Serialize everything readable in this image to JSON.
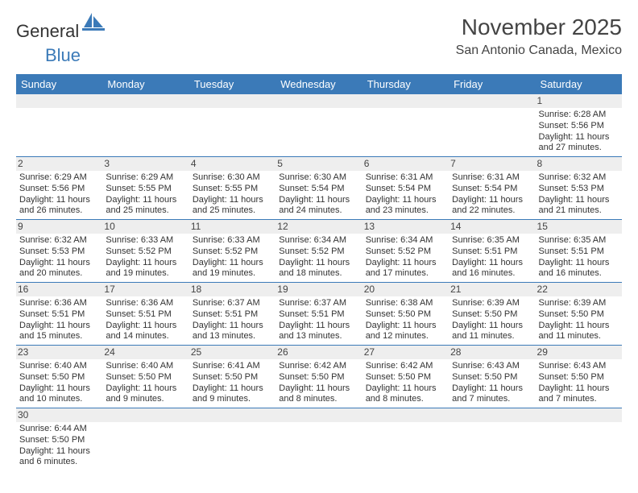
{
  "brand": {
    "part1": "General",
    "part2": "Blue"
  },
  "header": {
    "title": "November 2025",
    "location": "San Antonio Canada, Mexico"
  },
  "colors": {
    "accent": "#3b7ab8",
    "shade": "#eeeeee",
    "text": "#333333"
  },
  "daysOfWeek": [
    "Sunday",
    "Monday",
    "Tuesday",
    "Wednesday",
    "Thursday",
    "Friday",
    "Saturday"
  ],
  "grid": {
    "startOffset": 6,
    "cells": [
      {
        "n": 1,
        "sr": "6:28 AM",
        "ss": "5:56 PM",
        "dl": "11 hours and 27 minutes."
      },
      {
        "n": 2,
        "sr": "6:29 AM",
        "ss": "5:56 PM",
        "dl": "11 hours and 26 minutes."
      },
      {
        "n": 3,
        "sr": "6:29 AM",
        "ss": "5:55 PM",
        "dl": "11 hours and 25 minutes."
      },
      {
        "n": 4,
        "sr": "6:30 AM",
        "ss": "5:55 PM",
        "dl": "11 hours and 25 minutes."
      },
      {
        "n": 5,
        "sr": "6:30 AM",
        "ss": "5:54 PM",
        "dl": "11 hours and 24 minutes."
      },
      {
        "n": 6,
        "sr": "6:31 AM",
        "ss": "5:54 PM",
        "dl": "11 hours and 23 minutes."
      },
      {
        "n": 7,
        "sr": "6:31 AM",
        "ss": "5:54 PM",
        "dl": "11 hours and 22 minutes."
      },
      {
        "n": 8,
        "sr": "6:32 AM",
        "ss": "5:53 PM",
        "dl": "11 hours and 21 minutes."
      },
      {
        "n": 9,
        "sr": "6:32 AM",
        "ss": "5:53 PM",
        "dl": "11 hours and 20 minutes."
      },
      {
        "n": 10,
        "sr": "6:33 AM",
        "ss": "5:52 PM",
        "dl": "11 hours and 19 minutes."
      },
      {
        "n": 11,
        "sr": "6:33 AM",
        "ss": "5:52 PM",
        "dl": "11 hours and 19 minutes."
      },
      {
        "n": 12,
        "sr": "6:34 AM",
        "ss": "5:52 PM",
        "dl": "11 hours and 18 minutes."
      },
      {
        "n": 13,
        "sr": "6:34 AM",
        "ss": "5:52 PM",
        "dl": "11 hours and 17 minutes."
      },
      {
        "n": 14,
        "sr": "6:35 AM",
        "ss": "5:51 PM",
        "dl": "11 hours and 16 minutes."
      },
      {
        "n": 15,
        "sr": "6:35 AM",
        "ss": "5:51 PM",
        "dl": "11 hours and 16 minutes."
      },
      {
        "n": 16,
        "sr": "6:36 AM",
        "ss": "5:51 PM",
        "dl": "11 hours and 15 minutes."
      },
      {
        "n": 17,
        "sr": "6:36 AM",
        "ss": "5:51 PM",
        "dl": "11 hours and 14 minutes."
      },
      {
        "n": 18,
        "sr": "6:37 AM",
        "ss": "5:51 PM",
        "dl": "11 hours and 13 minutes."
      },
      {
        "n": 19,
        "sr": "6:37 AM",
        "ss": "5:51 PM",
        "dl": "11 hours and 13 minutes."
      },
      {
        "n": 20,
        "sr": "6:38 AM",
        "ss": "5:50 PM",
        "dl": "11 hours and 12 minutes."
      },
      {
        "n": 21,
        "sr": "6:39 AM",
        "ss": "5:50 PM",
        "dl": "11 hours and 11 minutes."
      },
      {
        "n": 22,
        "sr": "6:39 AM",
        "ss": "5:50 PM",
        "dl": "11 hours and 11 minutes."
      },
      {
        "n": 23,
        "sr": "6:40 AM",
        "ss": "5:50 PM",
        "dl": "11 hours and 10 minutes."
      },
      {
        "n": 24,
        "sr": "6:40 AM",
        "ss": "5:50 PM",
        "dl": "11 hours and 9 minutes."
      },
      {
        "n": 25,
        "sr": "6:41 AM",
        "ss": "5:50 PM",
        "dl": "11 hours and 9 minutes."
      },
      {
        "n": 26,
        "sr": "6:42 AM",
        "ss": "5:50 PM",
        "dl": "11 hours and 8 minutes."
      },
      {
        "n": 27,
        "sr": "6:42 AM",
        "ss": "5:50 PM",
        "dl": "11 hours and 8 minutes."
      },
      {
        "n": 28,
        "sr": "6:43 AM",
        "ss": "5:50 PM",
        "dl": "11 hours and 7 minutes."
      },
      {
        "n": 29,
        "sr": "6:43 AM",
        "ss": "5:50 PM",
        "dl": "11 hours and 7 minutes."
      },
      {
        "n": 30,
        "sr": "6:44 AM",
        "ss": "5:50 PM",
        "dl": "11 hours and 6 minutes."
      }
    ]
  },
  "labels": {
    "sunrise": "Sunrise:",
    "sunset": "Sunset:",
    "daylight": "Daylight:"
  }
}
